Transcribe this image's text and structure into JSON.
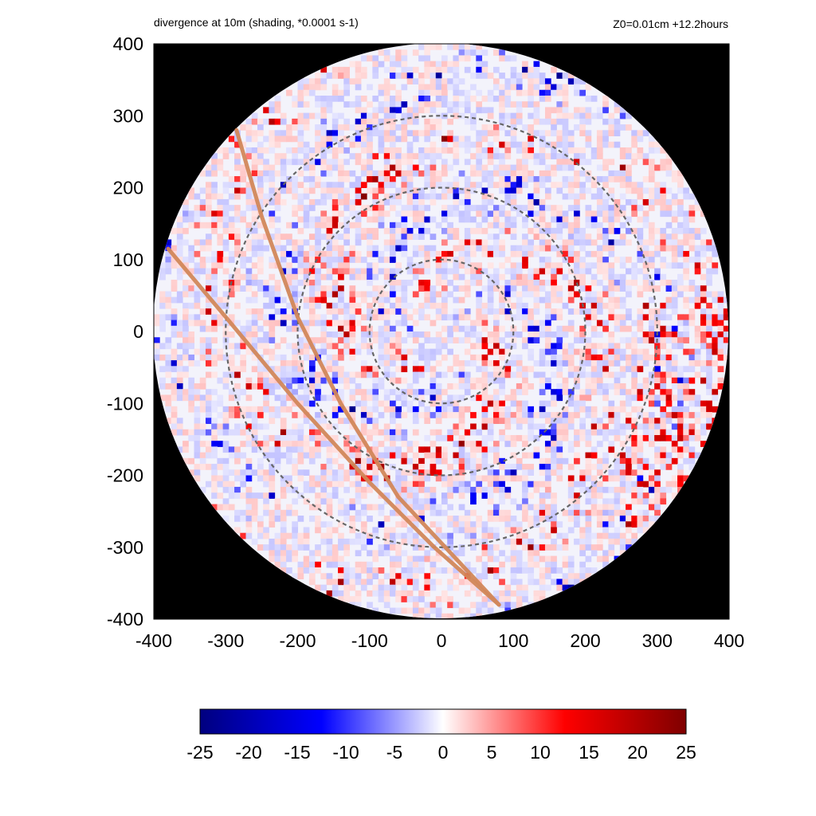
{
  "header": {
    "title": "divergence at 10m (shading, *0.0001 s-1)",
    "subtitle": "Z0=0.01cm  +12.2hours"
  },
  "chart_data": {
    "type": "heatmap",
    "title": "divergence at 10m (shading, *0.0001 s-1)",
    "subtitle": "Z0=0.01cm  +12.2hours",
    "xlim": [
      -400,
      400
    ],
    "ylim": [
      -400,
      400
    ],
    "x_ticks": [
      "-400",
      "-300",
      "-200",
      "-100",
      "0",
      "100",
      "200",
      "300",
      "400"
    ],
    "y_ticks": [
      "400",
      "300",
      "200",
      "100",
      "0",
      "-100",
      "-200",
      "-300",
      "-400"
    ],
    "domain_radius": 400,
    "outside_domain_color": "#000000",
    "range_rings": [
      100,
      200,
      300
    ],
    "ring_color": "#666666",
    "tracks": [
      {
        "color": "#d2875a",
        "points": [
          [
            -285,
            280
          ],
          [
            -250,
            160
          ],
          [
            -200,
            20
          ],
          [
            -140,
            -100
          ],
          [
            -60,
            -230
          ],
          [
            80,
            -380
          ]
        ]
      },
      {
        "color": "#d2875a",
        "points": [
          [
            -380,
            115
          ],
          [
            -300,
            20
          ],
          [
            -200,
            -100
          ],
          [
            -100,
            -210
          ],
          [
            -10,
            -300
          ],
          [
            80,
            -380
          ]
        ]
      }
    ],
    "colorbar": {
      "min": -25,
      "max": 25,
      "tick_labels": [
        "-25",
        "-20",
        "-15",
        "-10",
        "-5",
        "0",
        "5",
        "10",
        "15",
        "20",
        "25"
      ],
      "colors": [
        "#00007f",
        "#0000ff",
        "#ffffff",
        "#ff0000",
        "#7f0000"
      ]
    }
  }
}
